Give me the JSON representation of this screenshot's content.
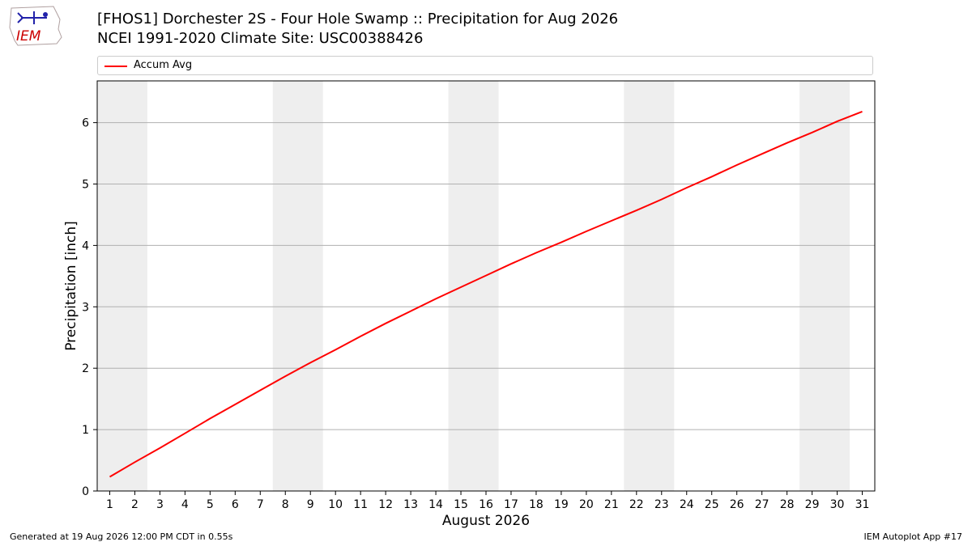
{
  "header": {
    "title_line1": "[FHOS1] Dorchester 2S - Four Hole Swamp :: Precipitation for Aug 2026",
    "title_line2": "NCEI 1991-2020 Climate Site: USC00388426"
  },
  "logo": {
    "text": "IEM",
    "icon": "iem-logo-icon"
  },
  "footer": {
    "generated": "Generated at 19 Aug 2026 12:00 PM CDT in 0.55s",
    "app": "IEM Autoplot App #17"
  },
  "chart_data": {
    "type": "line",
    "title": "[FHOS1] Dorchester 2S - Four Hole Swamp :: Precipitation for Aug 2026",
    "subtitle": "NCEI 1991-2020 Climate Site: USC00388426",
    "xlabel": "August 2026",
    "ylabel": "Precipitation [inch]",
    "xlim": [
      0.5,
      31.5
    ],
    "ylim": [
      0,
      6.68
    ],
    "x_ticks": [
      1,
      2,
      3,
      4,
      5,
      6,
      7,
      8,
      9,
      10,
      11,
      12,
      13,
      14,
      15,
      16,
      17,
      18,
      19,
      20,
      21,
      22,
      23,
      24,
      25,
      26,
      27,
      28,
      29,
      30,
      31
    ],
    "y_ticks": [
      0,
      1,
      2,
      3,
      4,
      5,
      6
    ],
    "grid": "horizontal",
    "weekend_bands": [
      [
        1,
        2
      ],
      [
        8,
        9
      ],
      [
        15,
        16
      ],
      [
        22,
        23
      ],
      [
        29,
        30
      ]
    ],
    "band_color": "#eeeeee",
    "legend_position": "top",
    "series": [
      {
        "name": "Accum Avg",
        "color": "#ff0000",
        "x": [
          1,
          2,
          3,
          4,
          5,
          6,
          7,
          8,
          9,
          10,
          11,
          12,
          13,
          14,
          15,
          16,
          17,
          18,
          19,
          20,
          21,
          22,
          23,
          24,
          25,
          26,
          27,
          28,
          29,
          30,
          31
        ],
        "values": [
          0.23,
          0.47,
          0.7,
          0.94,
          1.18,
          1.41,
          1.64,
          1.87,
          2.09,
          2.3,
          2.52,
          2.73,
          2.93,
          3.13,
          3.32,
          3.51,
          3.7,
          3.88,
          4.05,
          4.23,
          4.4,
          4.57,
          4.75,
          4.94,
          5.12,
          5.31,
          5.49,
          5.67,
          5.84,
          6.02,
          6.18
        ]
      }
    ]
  }
}
